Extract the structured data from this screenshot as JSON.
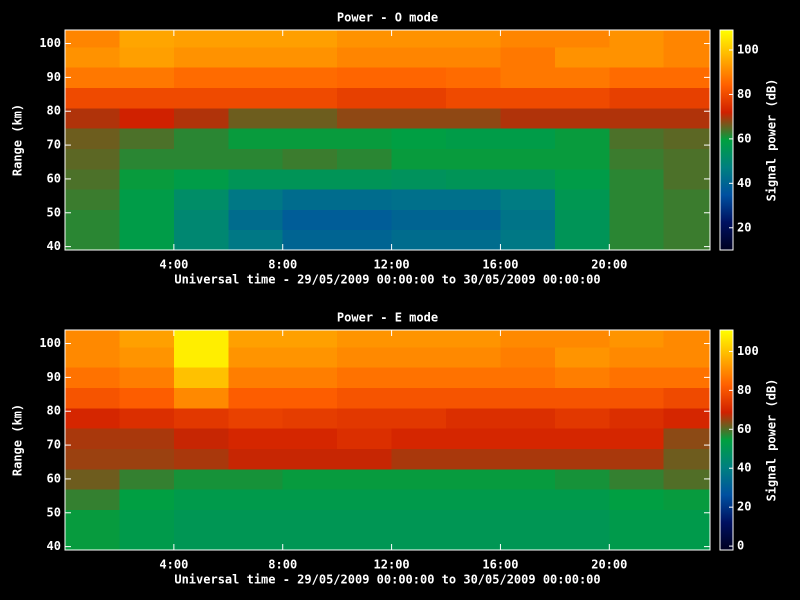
{
  "chart_data": [
    {
      "type": "heatmap",
      "title": "Power - O mode",
      "xlabel": "Universal time - 29/05/2009 00:00:00 to 30/05/2009 00:00:00",
      "ylabel": "Range (km)",
      "colorbar_label": "Signal power (dB)",
      "x": [
        0,
        2,
        4,
        6,
        8,
        10,
        12,
        14,
        16,
        18,
        20,
        22,
        23.7
      ],
      "y": [
        39,
        45,
        51,
        57,
        63,
        69,
        75,
        81,
        87,
        93,
        99,
        104
      ],
      "values": [
        [
          62,
          58,
          50,
          45,
          40,
          40,
          42,
          42,
          45,
          55,
          62,
          63
        ],
        [
          62,
          58,
          50,
          42,
          38,
          38,
          40,
          40,
          44,
          55,
          62,
          63
        ],
        [
          63,
          58,
          52,
          45,
          42,
          42,
          43,
          43,
          46,
          56,
          62,
          63
        ],
        [
          64,
          60,
          58,
          55,
          55,
          55,
          54,
          55,
          55,
          58,
          62,
          64
        ],
        [
          65,
          62,
          62,
          62,
          63,
          62,
          60,
          60,
          60,
          60,
          63,
          64
        ],
        [
          66,
          64,
          62,
          60,
          60,
          60,
          59,
          58,
          58,
          60,
          64,
          65
        ],
        [
          70,
          72,
          70,
          66,
          66,
          68,
          68,
          68,
          70,
          70,
          70,
          70
        ],
        [
          80,
          80,
          80,
          80,
          80,
          78,
          78,
          80,
          80,
          80,
          78,
          78
        ],
        [
          88,
          88,
          86,
          86,
          86,
          85,
          85,
          86,
          88,
          88,
          86,
          86
        ],
        [
          92,
          94,
          92,
          92,
          92,
          90,
          90,
          90,
          88,
          92,
          92,
          90
        ],
        [
          90,
          95,
          94,
          94,
          94,
          92,
          92,
          92,
          90,
          90,
          92,
          90
        ]
      ],
      "xlim": [
        0,
        23.7
      ],
      "xticks": [
        {
          "value": 4,
          "label": "4:00"
        },
        {
          "value": 8,
          "label": "8:00"
        },
        {
          "value": 12,
          "label": "12:00"
        },
        {
          "value": 16,
          "label": "16:00"
        },
        {
          "value": 20,
          "label": "20:00"
        }
      ],
      "ylim": [
        39,
        104
      ],
      "yticks": [
        40,
        50,
        60,
        70,
        80,
        90,
        100
      ],
      "zlim": [
        10,
        109
      ],
      "zticks": [
        20,
        40,
        60,
        80,
        100
      ],
      "colormap": [
        "#000020",
        "#001060",
        "#0050a0",
        "#008080",
        "#00a040",
        "#d02000",
        "#ff6000",
        "#ffb000",
        "#ffff00"
      ]
    },
    {
      "type": "heatmap",
      "title": "Power - E mode",
      "xlabel": "Universal time - 29/05/2009 00:00:00 to 30/05/2009 00:00:00",
      "ylabel": "Range (km)",
      "colorbar_label": "Signal power (dB)",
      "x": [
        0,
        2,
        4,
        6,
        8,
        10,
        12,
        14,
        16,
        18,
        20,
        22,
        23.7
      ],
      "y": [
        39,
        45,
        51,
        57,
        63,
        69,
        75,
        81,
        87,
        93,
        99,
        104
      ],
      "values": [
        [
          55,
          52,
          50,
          50,
          50,
          50,
          50,
          50,
          50,
          50,
          52,
          52
        ],
        [
          55,
          52,
          50,
          50,
          50,
          50,
          50,
          50,
          50,
          50,
          52,
          52
        ],
        [
          58,
          54,
          52,
          52,
          52,
          52,
          52,
          52,
          52,
          52,
          54,
          55
        ],
        [
          62,
          58,
          56,
          56,
          55,
          55,
          55,
          55,
          55,
          56,
          58,
          60
        ],
        [
          65,
          65,
          66,
          68,
          68,
          68,
          66,
          66,
          66,
          66,
          66,
          62
        ],
        [
          66,
          66,
          68,
          70,
          70,
          72,
          70,
          70,
          70,
          70,
          70,
          64
        ],
        [
          70,
          72,
          74,
          76,
          75,
          74,
          74,
          72,
          72,
          74,
          72,
          70
        ],
        [
          80,
          82,
          90,
          82,
          82,
          80,
          80,
          80,
          80,
          80,
          80,
          78
        ],
        [
          86,
          88,
          100,
          88,
          88,
          86,
          86,
          86,
          86,
          88,
          86,
          86
        ],
        [
          90,
          92,
          108,
          92,
          92,
          90,
          90,
          90,
          88,
          92,
          90,
          90
        ],
        [
          90,
          94,
          108,
          94,
          94,
          92,
          92,
          92,
          90,
          90,
          92,
          90
        ]
      ],
      "xlim": [
        0,
        23.7
      ],
      "xticks": [
        {
          "value": 4,
          "label": "4:00"
        },
        {
          "value": 8,
          "label": "8:00"
        },
        {
          "value": 12,
          "label": "12:00"
        },
        {
          "value": 16,
          "label": "16:00"
        },
        {
          "value": 20,
          "label": "20:00"
        }
      ],
      "ylim": [
        39,
        104
      ],
      "yticks": [
        40,
        50,
        60,
        70,
        80,
        90,
        100
      ],
      "zlim": [
        -2,
        111
      ],
      "zticks": [
        0,
        20,
        40,
        60,
        80,
        100
      ],
      "colormap": [
        "#000020",
        "#001060",
        "#0050a0",
        "#008080",
        "#00a040",
        "#d02000",
        "#ff6000",
        "#ffb000",
        "#ffff00"
      ]
    }
  ]
}
